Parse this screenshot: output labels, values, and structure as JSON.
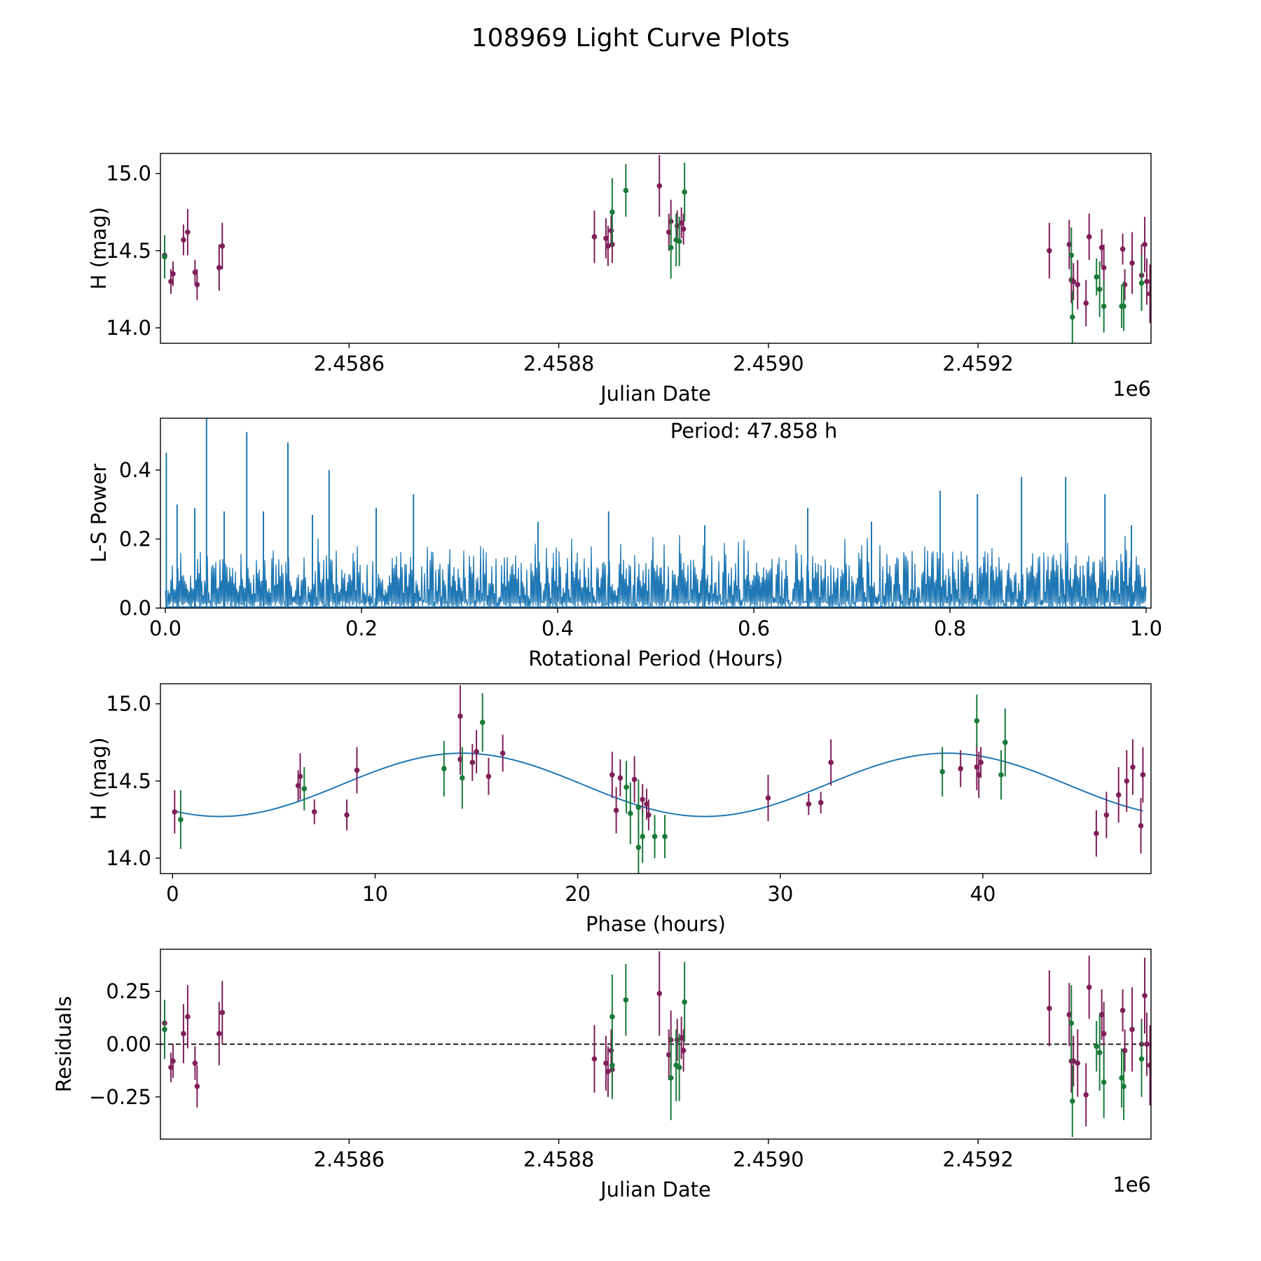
{
  "title": "108969 Light Curve Plots",
  "colors": {
    "magenta": "#7f1f5a",
    "green": "#1a7a3a",
    "blue": "#1f77b4",
    "black": "#000000"
  },
  "chart_data": [
    {
      "id": "lightcurve",
      "type": "scatter",
      "title": "",
      "xlabel": "Julian Date",
      "ylabel": "H (mag)",
      "offset_label": "1e6",
      "xlim": [
        2458420,
        2459365
      ],
      "ylim": [
        13.9,
        15.13
      ],
      "xticks": [
        2458600,
        2458800,
        2459000,
        2459200
      ],
      "xtick_labels": [
        "2.4586",
        "2.4588",
        "2.4590",
        "2.4592"
      ],
      "yticks": [
        14.0,
        14.5,
        15.0
      ],
      "ytick_labels": [
        "14.0",
        "14.5",
        "15.0"
      ],
      "series": [
        {
          "name": "magenta-band",
          "color": "magenta",
          "points": [
            [
              2458424,
              14.47,
              0.08
            ],
            [
              2458430,
              14.3,
              0.08
            ],
            [
              2458432,
              14.35,
              0.08
            ],
            [
              2458442,
              14.57,
              0.1
            ],
            [
              2458446,
              14.62,
              0.15
            ],
            [
              2458453,
              14.36,
              0.08
            ],
            [
              2458455,
              14.28,
              0.1
            ],
            [
              2458476,
              14.39,
              0.15
            ],
            [
              2458479,
              14.53,
              0.15
            ],
            [
              2458834,
              14.59,
              0.17
            ],
            [
              2458845,
              14.58,
              0.13
            ],
            [
              2458847,
              14.53,
              0.13
            ],
            [
              2458851,
              14.54,
              0.12
            ],
            [
              2458850,
              14.63,
              0.1
            ],
            [
              2458896,
              14.92,
              0.2
            ],
            [
              2458905,
              14.62,
              0.12
            ],
            [
              2458907,
              14.69,
              0.14
            ],
            [
              2458913,
              14.66,
              0.1
            ],
            [
              2458917,
              14.68,
              0.1
            ],
            [
              2458919,
              14.64,
              0.1
            ],
            [
              2459268,
              14.5,
              0.18
            ],
            [
              2459287,
              14.54,
              0.16
            ],
            [
              2459289,
              14.31,
              0.15
            ],
            [
              2459291,
              14.3,
              0.12
            ],
            [
              2459295,
              14.28,
              0.16
            ],
            [
              2459303,
              14.16,
              0.15
            ],
            [
              2459306,
              14.59,
              0.15
            ],
            [
              2459318,
              14.52,
              0.12
            ],
            [
              2459320,
              14.39,
              0.15
            ],
            [
              2459338,
              14.51,
              0.1
            ],
            [
              2459340,
              14.28,
              0.1
            ],
            [
              2459347,
              14.42,
              0.2
            ],
            [
              2459359,
              14.54,
              0.18
            ],
            [
              2459361,
              14.3,
              0.15
            ],
            [
              2459364,
              14.22,
              0.19
            ],
            [
              2459356,
              14.34,
              0.2
            ]
          ]
        },
        {
          "name": "green-band",
          "color": "green",
          "points": [
            [
              2458424,
              14.46,
              0.14
            ],
            [
              2458851,
              14.75,
              0.22
            ],
            [
              2458864,
              14.89,
              0.17
            ],
            [
              2458907,
              14.52,
              0.2
            ],
            [
              2458912,
              14.57,
              0.17
            ],
            [
              2458915,
              14.56,
              0.16
            ],
            [
              2458920,
              14.88,
              0.19
            ],
            [
              2459289,
              14.47,
              0.18
            ],
            [
              2459290,
              14.07,
              0.17
            ],
            [
              2459313,
              14.33,
              0.12
            ],
            [
              2459316,
              14.25,
              0.18
            ],
            [
              2459320,
              14.14,
              0.17
            ],
            [
              2459337,
              14.14,
              0.14
            ],
            [
              2459339,
              14.14,
              0.16
            ],
            [
              2459356,
              14.29,
              0.18
            ]
          ]
        }
      ]
    },
    {
      "id": "periodogram",
      "type": "line",
      "title": "",
      "annotation": "Period: 47.858 h",
      "xlabel": "Rotational Period (Hours)",
      "ylabel": "L-S Power",
      "xlim": [
        -0.005,
        1.005
      ],
      "ylim": [
        0,
        0.55
      ],
      "xticks": [
        0.0,
        0.2,
        0.4,
        0.6,
        0.8,
        1.0
      ],
      "xtick_labels": [
        "0.0",
        "0.2",
        "0.4",
        "0.6",
        "0.8",
        "1.0"
      ],
      "yticks": [
        0.0,
        0.2,
        0.4
      ],
      "ytick_labels": [
        "0.0",
        "0.2",
        "0.4"
      ],
      "peaks": [
        [
          0.001,
          0.45
        ],
        [
          0.042,
          0.55
        ],
        [
          0.083,
          0.51
        ],
        [
          0.125,
          0.48
        ],
        [
          0.167,
          0.4
        ],
        [
          0.253,
          0.33
        ],
        [
          0.873,
          0.38
        ],
        [
          0.918,
          0.38
        ],
        [
          0.958,
          0.33
        ],
        [
          0.79,
          0.34
        ],
        [
          0.828,
          0.33
        ],
        [
          0.655,
          0.29
        ],
        [
          0.452,
          0.28
        ],
        [
          0.012,
          0.3
        ],
        [
          0.03,
          0.29
        ],
        [
          0.06,
          0.28
        ],
        [
          0.1,
          0.28
        ],
        [
          0.15,
          0.27
        ],
        [
          0.215,
          0.29
        ],
        [
          0.38,
          0.25
        ],
        [
          0.55,
          0.24
        ],
        [
          0.72,
          0.25
        ],
        [
          0.985,
          0.24
        ]
      ],
      "noise_band": {
        "base": 0.12,
        "tilt": 0.03,
        "amplitude": 0.1
      }
    },
    {
      "id": "phased",
      "type": "scatter",
      "title": "",
      "xlabel": "Phase (hours)",
      "ylabel": "H (mag)",
      "xlim": [
        -0.6,
        48.3
      ],
      "ylim": [
        13.9,
        15.13
      ],
      "xticks": [
        0,
        10,
        20,
        30,
        40
      ],
      "xtick_labels": [
        "0",
        "10",
        "20",
        "30",
        "40"
      ],
      "yticks": [
        14.0,
        14.5,
        15.0
      ],
      "ytick_labels": [
        "14.0",
        "14.5",
        "15.0"
      ],
      "fit_curve": {
        "mean": 14.475,
        "amplitude": 0.205,
        "period": 23.929,
        "phase_peak": 14.3
      },
      "series": [
        {
          "name": "magenta-band",
          "color": "magenta",
          "points": [
            [
              0.1,
              14.3,
              0.14
            ],
            [
              6.2,
              14.47,
              0.1
            ],
            [
              6.3,
              14.53,
              0.15
            ],
            [
              7.0,
              14.3,
              0.08
            ],
            [
              8.6,
              14.28,
              0.1
            ],
            [
              9.1,
              14.57,
              0.15
            ],
            [
              14.2,
              14.92,
              0.2
            ],
            [
              14.2,
              14.64,
              0.1
            ],
            [
              14.8,
              14.62,
              0.12
            ],
            [
              15.0,
              14.69,
              0.14
            ],
            [
              15.6,
              14.53,
              0.12
            ],
            [
              16.3,
              14.68,
              0.12
            ],
            [
              21.7,
              14.54,
              0.15
            ],
            [
              21.9,
              14.31,
              0.15
            ],
            [
              22.1,
              14.52,
              0.12
            ],
            [
              22.8,
              14.51,
              0.15
            ],
            [
              23.2,
              14.38,
              0.1
            ],
            [
              23.4,
              14.35,
              0.1
            ],
            [
              23.5,
              14.28,
              0.1
            ],
            [
              29.4,
              14.39,
              0.15
            ],
            [
              31.4,
              14.35,
              0.07
            ],
            [
              32.0,
              14.36,
              0.07
            ],
            [
              32.5,
              14.62,
              0.15
            ],
            [
              38.9,
              14.58,
              0.12
            ],
            [
              39.7,
              14.59,
              0.15
            ],
            [
              39.8,
              14.54,
              0.15
            ],
            [
              39.9,
              14.62,
              0.1
            ],
            [
              45.6,
              14.16,
              0.15
            ],
            [
              46.1,
              14.28,
              0.15
            ],
            [
              46.7,
              14.41,
              0.18
            ],
            [
              47.1,
              14.5,
              0.2
            ],
            [
              47.4,
              14.59,
              0.18
            ],
            [
              47.8,
              14.21,
              0.18
            ],
            [
              47.9,
              14.54,
              0.18
            ]
          ]
        },
        {
          "name": "green-band",
          "color": "green",
          "points": [
            [
              0.4,
              14.25,
              0.19
            ],
            [
              6.5,
              14.45,
              0.14
            ],
            [
              13.4,
              14.58,
              0.18
            ],
            [
              14.3,
              14.52,
              0.2
            ],
            [
              15.3,
              14.88,
              0.19
            ],
            [
              22.4,
              14.46,
              0.17
            ],
            [
              22.6,
              14.29,
              0.2
            ],
            [
              23.0,
              14.33,
              0.18
            ],
            [
              23.0,
              14.07,
              0.17
            ],
            [
              23.2,
              14.14,
              0.17
            ],
            [
              23.8,
              14.14,
              0.14
            ],
            [
              24.3,
              14.14,
              0.14
            ],
            [
              38.0,
              14.56,
              0.16
            ],
            [
              39.7,
              14.89,
              0.17
            ],
            [
              40.9,
              14.54,
              0.16
            ],
            [
              41.1,
              14.75,
              0.22
            ]
          ]
        }
      ]
    },
    {
      "id": "residuals",
      "type": "scatter",
      "title": "",
      "xlabel": "Julian Date",
      "ylabel": "Residuals",
      "offset_label": "1e6",
      "reference_line": 0.0,
      "xlim": [
        2458420,
        2459365
      ],
      "ylim": [
        -0.45,
        0.45
      ],
      "xticks": [
        2458600,
        2458800,
        2459000,
        2459200
      ],
      "xtick_labels": [
        "2.4586",
        "2.4588",
        "2.4590",
        "2.4592"
      ],
      "yticks": [
        -0.25,
        0.0,
        0.25
      ],
      "ytick_labels": [
        "−0.25",
        "0.00",
        "0.25"
      ],
      "series": [
        {
          "name": "magenta-band",
          "color": "magenta",
          "points": [
            [
              2458424,
              0.1,
              0.1
            ],
            [
              2458430,
              -0.11,
              0.07
            ],
            [
              2458432,
              -0.08,
              0.08
            ],
            [
              2458442,
              0.05,
              0.14
            ],
            [
              2458446,
              0.13,
              0.15
            ],
            [
              2458453,
              -0.09,
              0.08
            ],
            [
              2458455,
              -0.2,
              0.1
            ],
            [
              2458476,
              0.05,
              0.15
            ],
            [
              2458479,
              0.15,
              0.15
            ],
            [
              2458834,
              -0.07,
              0.16
            ],
            [
              2458845,
              -0.09,
              0.13
            ],
            [
              2458847,
              -0.13,
              0.12
            ],
            [
              2458851,
              -0.12,
              0.12
            ],
            [
              2458850,
              -0.03,
              0.1
            ],
            [
              2458896,
              0.24,
              0.2
            ],
            [
              2458905,
              -0.05,
              0.12
            ],
            [
              2458907,
              0.02,
              0.14
            ],
            [
              2458913,
              0.02,
              0.1
            ],
            [
              2458917,
              0.03,
              0.1
            ],
            [
              2458919,
              -0.03,
              0.1
            ],
            [
              2459268,
              0.17,
              0.18
            ],
            [
              2459287,
              0.14,
              0.15
            ],
            [
              2459289,
              -0.08,
              0.15
            ],
            [
              2459291,
              -0.08,
              0.12
            ],
            [
              2459295,
              -0.09,
              0.16
            ],
            [
              2459303,
              -0.24,
              0.15
            ],
            [
              2459306,
              0.27,
              0.15
            ],
            [
              2459318,
              0.14,
              0.12
            ],
            [
              2459320,
              0.05,
              0.15
            ],
            [
              2459338,
              0.16,
              0.1
            ],
            [
              2459340,
              -0.03,
              0.1
            ],
            [
              2459347,
              0.07,
              0.2
            ],
            [
              2459359,
              0.23,
              0.18
            ],
            [
              2459361,
              0.0,
              0.15
            ],
            [
              2459364,
              -0.1,
              0.19
            ],
            [
              2459356,
              0.0,
              0.12
            ]
          ]
        },
        {
          "name": "green-band",
          "color": "green",
          "points": [
            [
              2458424,
              0.07,
              0.14
            ],
            [
              2458851,
              0.13,
              0.2
            ],
            [
              2458864,
              0.21,
              0.17
            ],
            [
              2458851,
              -0.1,
              0.16
            ],
            [
              2458907,
              -0.16,
              0.2
            ],
            [
              2458912,
              -0.1,
              0.17
            ],
            [
              2458915,
              -0.11,
              0.16
            ],
            [
              2458920,
              0.2,
              0.19
            ],
            [
              2459289,
              0.1,
              0.18
            ],
            [
              2459290,
              -0.27,
              0.17
            ],
            [
              2459313,
              -0.01,
              0.12
            ],
            [
              2459316,
              -0.04,
              0.18
            ],
            [
              2459320,
              -0.18,
              0.17
            ],
            [
              2459337,
              -0.16,
              0.14
            ],
            [
              2459339,
              -0.2,
              0.16
            ],
            [
              2459356,
              -0.07,
              0.18
            ]
          ]
        }
      ]
    }
  ]
}
